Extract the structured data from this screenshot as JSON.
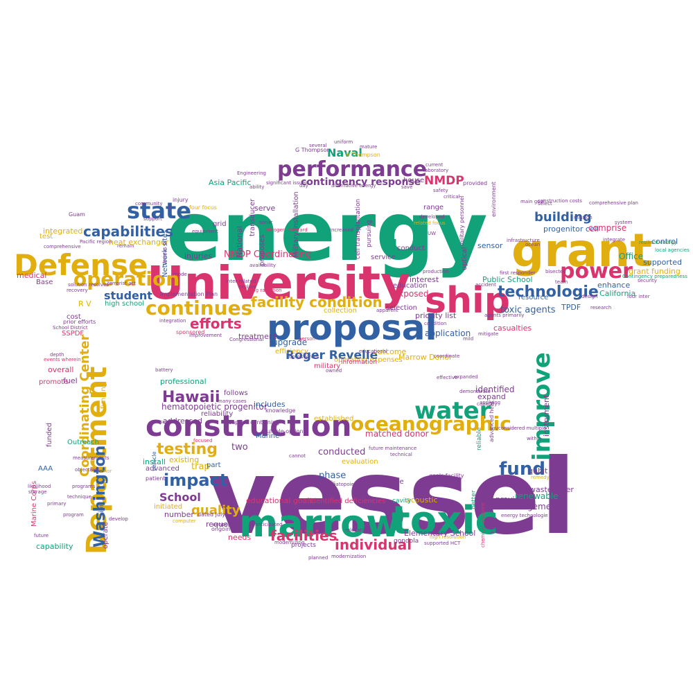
{
  "palette": {
    "green": "#12a27a",
    "purple": "#7d3c92",
    "pink": "#d9346e",
    "blue": "#3160a3",
    "yellow": "#e0ae0f"
  },
  "words": [
    {
      "text": "vessel",
      "color": "purple"
    },
    {
      "text": "energy",
      "color": "green"
    },
    {
      "text": "University",
      "color": "pink"
    },
    {
      "text": "grant",
      "color": "yellow"
    },
    {
      "text": "proposal",
      "color": "blue"
    },
    {
      "text": "marrow",
      "color": "green"
    },
    {
      "text": "toxic",
      "color": "green"
    },
    {
      "text": "construction",
      "color": "purple"
    },
    {
      "text": "Defense",
      "color": "yellow"
    },
    {
      "text": "Department",
      "color": "yellow"
    },
    {
      "text": "ship",
      "color": "pink"
    },
    {
      "text": "performance",
      "color": "purple"
    },
    {
      "text": "improve",
      "color": "green"
    },
    {
      "text": "water",
      "color": "green"
    },
    {
      "text": "oceanographic",
      "color": "yellow"
    },
    {
      "text": "state",
      "color": "blue"
    },
    {
      "text": "continues",
      "color": "yellow"
    },
    {
      "text": "operation",
      "color": "yellow"
    },
    {
      "text": "power",
      "color": "pink"
    },
    {
      "text": "technologie",
      "color": "blue"
    },
    {
      "text": "capabilities",
      "color": "blue"
    },
    {
      "text": "fund",
      "color": "blue"
    },
    {
      "text": "impact",
      "color": "blue"
    },
    {
      "text": "facilities",
      "color": "pink"
    },
    {
      "text": "facility condition",
      "color": "yellow"
    },
    {
      "text": "Hawaii",
      "color": "purple"
    },
    {
      "text": "testing",
      "color": "yellow"
    },
    {
      "text": "Washington",
      "color": "blue"
    },
    {
      "text": "Coordinating Center",
      "color": "yellow"
    },
    {
      "text": "individual",
      "color": "pink"
    },
    {
      "text": "Roger Revelle",
      "color": "blue"
    },
    {
      "text": "efforts",
      "color": "pink"
    },
    {
      "text": "building",
      "color": "blue"
    },
    {
      "text": "Naval",
      "color": "green"
    },
    {
      "text": "NMDP",
      "color": "pink"
    },
    {
      "text": "quality",
      "color": "yellow"
    },
    {
      "text": "School",
      "color": "purple"
    },
    {
      "text": "student",
      "color": "blue"
    },
    {
      "text": "U",
      "color": "green"
    },
    {
      "text": "contingency response",
      "color": "purple"
    },
    {
      "text": "NMDP Coordinating",
      "color": "pink"
    },
    {
      "text": "hematopoietic progenitor",
      "color": "purple"
    },
    {
      "text": "toxic agents",
      "color": "blue"
    },
    {
      "text": "Public School",
      "color": "green"
    },
    {
      "text": "Office",
      "color": "green"
    },
    {
      "text": "control",
      "color": "blue"
    },
    {
      "text": "progenitor cell",
      "color": "blue"
    },
    {
      "text": "comprise",
      "color": "pink"
    },
    {
      "text": "supported",
      "color": "blue"
    },
    {
      "text": "grant funding",
      "color": "yellow"
    },
    {
      "text": "enhance",
      "color": "blue"
    },
    {
      "text": "California",
      "color": "green"
    },
    {
      "text": "TPDF",
      "color": "blue"
    },
    {
      "text": "Marrow Donor",
      "color": "yellow"
    },
    {
      "text": "application",
      "color": "blue"
    },
    {
      "text": "casualties",
      "color": "pink"
    },
    {
      "text": "upgrade",
      "color": "blue"
    },
    {
      "text": "treatment",
      "color": "purple"
    },
    {
      "text": "injuries",
      "color": "purple"
    },
    {
      "text": "Network sites",
      "color": "blue"
    },
    {
      "text": "Military Installation",
      "color": "purple"
    },
    {
      "text": "heat exchanger",
      "color": "yellow"
    },
    {
      "text": "medical",
      "color": "pink"
    },
    {
      "text": "integrated",
      "color": "yellow"
    },
    {
      "text": "high school",
      "color": "green"
    },
    {
      "text": "cost",
      "color": "purple"
    },
    {
      "text": "SSPDF",
      "color": "pink"
    },
    {
      "text": "overall",
      "color": "pink"
    },
    {
      "text": "fuel",
      "color": "purple"
    },
    {
      "text": "funding",
      "color": "yellow"
    },
    {
      "text": "promote",
      "color": "pink"
    },
    {
      "text": "funded",
      "color": "purple"
    },
    {
      "text": "Outreach",
      "color": "green"
    },
    {
      "text": "AAA",
      "color": "blue"
    },
    {
      "text": "Marine Corps",
      "color": "pink"
    },
    {
      "text": "capability",
      "color": "green"
    },
    {
      "text": "operate",
      "color": "purple"
    },
    {
      "text": "ion",
      "color": "blue"
    },
    {
      "text": "professional",
      "color": "green"
    },
    {
      "text": "addressed",
      "color": "purple"
    },
    {
      "text": "existing",
      "color": "yellow"
    },
    {
      "text": "install",
      "color": "green"
    },
    {
      "text": "advanced",
      "color": "purple"
    },
    {
      "text": "initiated",
      "color": "yellow"
    },
    {
      "text": "number",
      "color": "purple"
    },
    {
      "text": "trap",
      "color": "yellow"
    },
    {
      "text": "two",
      "color": "purple"
    },
    {
      "text": "part",
      "color": "blue"
    },
    {
      "text": "request",
      "color": "purple"
    },
    {
      "text": "needs",
      "color": "pink"
    },
    {
      "text": "educational goals",
      "color": "pink"
    },
    {
      "text": "identified deficiencies",
      "color": "pink"
    },
    {
      "text": "phase",
      "color": "blue"
    },
    {
      "text": "conducted",
      "color": "purple"
    },
    {
      "text": "established",
      "color": "yellow"
    },
    {
      "text": "matched donor",
      "color": "pink"
    },
    {
      "text": "Elementary School",
      "color": "purple"
    },
    {
      "text": "management",
      "color": "purple"
    },
    {
      "text": "renewable",
      "color": "green"
    },
    {
      "text": "wastewater",
      "color": "purple"
    },
    {
      "text": "qubit",
      "color": "purple"
    },
    {
      "text": "provides",
      "color": "purple"
    },
    {
      "text": "identified",
      "color": "purple"
    },
    {
      "text": "expand",
      "color": "purple"
    },
    {
      "text": "instrument",
      "color": "purple"
    },
    {
      "text": "acoustic",
      "color": "yellow"
    },
    {
      "text": "includes",
      "color": "blue"
    },
    {
      "text": "follows",
      "color": "purple"
    },
    {
      "text": "reliability",
      "color": "purple"
    },
    {
      "text": "Marine",
      "color": "blue"
    },
    {
      "text": "exposed",
      "color": "pink"
    },
    {
      "text": "priority list",
      "color": "purple"
    },
    {
      "text": "selection",
      "color": "purple"
    },
    {
      "text": "education",
      "color": "purple"
    },
    {
      "text": "interest",
      "color": "purple"
    },
    {
      "text": "service",
      "color": "purple"
    },
    {
      "text": "conduct",
      "color": "purple"
    },
    {
      "text": "range",
      "color": "purple"
    },
    {
      "text": "sensor",
      "color": "blue"
    },
    {
      "text": "optical",
      "color": "purple"
    },
    {
      "text": "resource",
      "color": "blue"
    },
    {
      "text": "Asia Pacific",
      "color": "green"
    },
    {
      "text": "serve",
      "color": "purple"
    },
    {
      "text": "grid",
      "color": "purple"
    },
    {
      "text": "National",
      "color": "purple"
    },
    {
      "text": "transducer",
      "color": "purple"
    },
    {
      "text": "proposes",
      "color": "purple"
    },
    {
      "text": "house",
      "color": "purple"
    },
    {
      "text": "operating expenses",
      "color": "yellow"
    },
    {
      "text": "collection",
      "color": "yellow"
    },
    {
      "text": "military",
      "color": "pink"
    },
    {
      "text": "outcome",
      "color": "yellow"
    },
    {
      "text": "efficiency",
      "color": "yellow"
    },
    {
      "text": "information",
      "color": "pink"
    },
    {
      "text": "Base",
      "color": "purple"
    },
    {
      "text": "test",
      "color": "yellow"
    },
    {
      "text": "R V",
      "color": "yellow"
    },
    {
      "text": "projects",
      "color": "purple"
    },
    {
      "text": "gondola",
      "color": "purple"
    },
    {
      "text": "cell transplantation",
      "color": "purple"
    },
    {
      "text": "pursuing",
      "color": "purple"
    },
    {
      "text": "military personnel",
      "color": "purple"
    },
    {
      "text": "cavity",
      "color": "green"
    },
    {
      "text": "time",
      "color": "purple"
    },
    {
      "text": "evaluation",
      "color": "yellow"
    },
    {
      "text": "life",
      "color": "purple"
    },
    {
      "text": "reliable",
      "color": "green"
    },
    {
      "text": "environment",
      "color": "purple"
    },
    {
      "text": "sponsored",
      "color": "pink"
    },
    {
      "text": "weapons containing",
      "color": "purple"
    },
    {
      "text": "e",
      "color": "purple"
    },
    {
      "text": "injury",
      "color": "purple"
    },
    {
      "text": "four focus",
      "color": "yellow"
    },
    {
      "text": "Guam",
      "color": "purple"
    },
    {
      "text": "Pacific region",
      "color": "purple"
    },
    {
      "text": "prior efforts",
      "color": "purple"
    },
    {
      "text": "School District",
      "color": "purple"
    },
    {
      "text": "depth",
      "color": "purple"
    },
    {
      "text": "G Thompson",
      "color": "purple"
    },
    {
      "text": "V Thompson",
      "color": "yellow"
    },
    {
      "text": "uniform",
      "color": "purple"
    },
    {
      "text": "several",
      "color": "purple"
    },
    {
      "text": "mature",
      "color": "purple"
    },
    {
      "text": "Engineering",
      "color": "purple"
    },
    {
      "text": "ability",
      "color": "purple"
    },
    {
      "text": "significant issues",
      "color": "purple"
    },
    {
      "text": "construction costs",
      "color": "purple"
    },
    {
      "text": "security",
      "color": "purple"
    },
    {
      "text": "local agencies",
      "color": "green"
    },
    {
      "text": "resilient energy",
      "color": "green"
    },
    {
      "text": "Contingency preparedness",
      "color": "green"
    },
    {
      "text": "four inter",
      "color": "purple"
    },
    {
      "text": "HIV",
      "color": "purple"
    },
    {
      "text": "remedy",
      "color": "yellow"
    },
    {
      "text": "advanced heat",
      "color": "purple"
    },
    {
      "text": "applying",
      "color": "purple"
    },
    {
      "text": "vehicle",
      "color": "blue"
    },
    {
      "text": "patient",
      "color": "purple"
    },
    {
      "text": "dated July",
      "color": "purple"
    },
    {
      "text": "relocation",
      "color": "purple"
    },
    {
      "text": "modernizing",
      "color": "purple"
    },
    {
      "text": "anticipated",
      "color": "purple"
    },
    {
      "text": "educational",
      "color": "purple"
    },
    {
      "text": "owned",
      "color": "purple"
    },
    {
      "text": "Corps forces",
      "color": "purple"
    },
    {
      "text": "mild",
      "color": "purple"
    },
    {
      "text": "accident",
      "color": "purple"
    },
    {
      "text": "production",
      "color": "purple"
    },
    {
      "text": "developed",
      "color": "purple"
    },
    {
      "text": "related focus",
      "color": "yellow"
    },
    {
      "text": "UW",
      "color": "purple"
    },
    {
      "text": "provided",
      "color": "purple"
    },
    {
      "text": "select",
      "color": "purple"
    },
    {
      "text": "Implementation Plan",
      "color": "purple"
    },
    {
      "text": "integration",
      "color": "purple"
    },
    {
      "text": "mode",
      "color": "purple"
    },
    {
      "text": "recovery",
      "color": "purple"
    },
    {
      "text": "solution resolves",
      "color": "purple"
    },
    {
      "text": "terrorist act",
      "color": "purple"
    },
    {
      "text": "comprehensive",
      "color": "purple"
    },
    {
      "text": "likelihood",
      "color": "purple"
    },
    {
      "text": "future",
      "color": "purple"
    },
    {
      "text": "events wherein",
      "color": "pink"
    },
    {
      "text": "programs",
      "color": "purple"
    },
    {
      "text": "donor",
      "color": "yellow"
    },
    {
      "text": "multiple options",
      "color": "purple"
    },
    {
      "text": "hematopoietic",
      "color": "purple"
    },
    {
      "text": "future maintenance",
      "color": "purple"
    },
    {
      "text": "meet",
      "color": "purple"
    },
    {
      "text": "technical",
      "color": "purple"
    },
    {
      "text": "goals facility",
      "color": "purple"
    },
    {
      "text": "within",
      "color": "purple"
    },
    {
      "text": "better",
      "color": "green"
    },
    {
      "text": "energy technologie",
      "color": "purple"
    },
    {
      "text": "high resolution",
      "color": "yellow"
    },
    {
      "text": "supported HCT",
      "color": "purple"
    },
    {
      "text": "ongoing",
      "color": "purple"
    },
    {
      "text": "computer",
      "color": "yellow"
    },
    {
      "text": "surface",
      "color": "purple"
    },
    {
      "text": "focused",
      "color": "pink"
    },
    {
      "text": "knowledge",
      "color": "purple"
    },
    {
      "text": "many cases",
      "color": "purple"
    },
    {
      "text": "battery",
      "color": "purple"
    },
    {
      "text": "divide",
      "color": "purple"
    },
    {
      "text": "scientific",
      "color": "purple"
    },
    {
      "text": "ionizing radiation",
      "color": "pink"
    },
    {
      "text": "explore",
      "color": "purple"
    },
    {
      "text": "inter related",
      "color": "purple"
    },
    {
      "text": "nitrogen mustard",
      "color": "pink"
    },
    {
      "text": "availability",
      "color": "purple"
    },
    {
      "text": "person",
      "color": "pink"
    },
    {
      "text": "Thomas G",
      "color": "purple"
    },
    {
      "text": "mitigate",
      "color": "purple"
    },
    {
      "text": "agents primarily",
      "color": "purple"
    },
    {
      "text": "chemical weapons",
      "color": "pink"
    },
    {
      "text": "cannot",
      "color": "purple"
    },
    {
      "text": "weapons",
      "color": "purple"
    },
    {
      "text": "considered multiple",
      "color": "purple"
    },
    {
      "text": "capacity",
      "color": "purple"
    },
    {
      "text": "demonstrate",
      "color": "purple"
    },
    {
      "text": "first responder",
      "color": "purple"
    },
    {
      "text": "comprehensive plan",
      "color": "purple"
    },
    {
      "text": "improvement",
      "color": "purple"
    },
    {
      "text": "Congressional",
      "color": "purple"
    },
    {
      "text": "increased",
      "color": "purple"
    },
    {
      "text": "sonar",
      "color": "purple"
    },
    {
      "text": "alternative energy",
      "color": "purple"
    },
    {
      "text": "save",
      "color": "purple"
    },
    {
      "text": "day",
      "color": "purple"
    },
    {
      "text": "main goal",
      "color": "purple"
    },
    {
      "text": "team",
      "color": "purple"
    },
    {
      "text": "bisected",
      "color": "purple"
    },
    {
      "text": "modernization",
      "color": "purple"
    },
    {
      "text": "planned",
      "color": "purple"
    },
    {
      "text": "coordinate",
      "color": "purple"
    },
    {
      "text": "integrate",
      "color": "purple"
    },
    {
      "text": "apparent",
      "color": "purple"
    },
    {
      "text": "condition",
      "color": "purple"
    },
    {
      "text": "effective",
      "color": "purple"
    },
    {
      "text": "expanded",
      "color": "purple"
    },
    {
      "text": "objectives",
      "color": "purple"
    },
    {
      "text": "measurements",
      "color": "purple"
    },
    {
      "text": "storage",
      "color": "purple"
    },
    {
      "text": "technique",
      "color": "purple"
    },
    {
      "text": "program",
      "color": "purple"
    },
    {
      "text": "primary",
      "color": "purple"
    },
    {
      "text": "develop",
      "color": "purple"
    },
    {
      "text": "support",
      "color": "purple"
    },
    {
      "text": "equipment",
      "color": "purple"
    },
    {
      "text": "mission",
      "color": "purple"
    },
    {
      "text": "system",
      "color": "purple"
    },
    {
      "text": "design",
      "color": "purple"
    },
    {
      "text": "research",
      "color": "purple"
    },
    {
      "text": "community",
      "color": "purple"
    },
    {
      "text": "remain",
      "color": "purple"
    },
    {
      "text": "infrastructure",
      "color": "purple"
    },
    {
      "text": "ocean",
      "color": "purple"
    },
    {
      "text": "laboratory",
      "color": "purple"
    },
    {
      "text": "critical",
      "color": "purple"
    },
    {
      "text": "safety",
      "color": "purple"
    },
    {
      "text": "current",
      "color": "purple"
    }
  ]
}
